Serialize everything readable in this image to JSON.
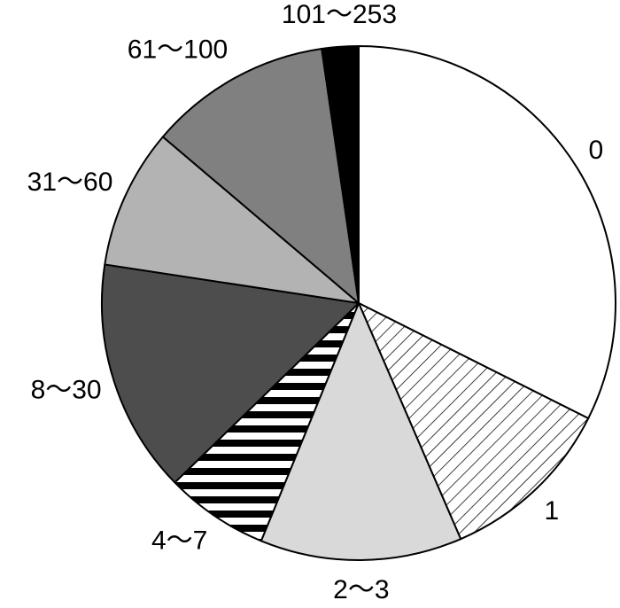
{
  "chart_data": {
    "type": "pie",
    "categories": [
      "0",
      "1",
      "2～3",
      "4～7",
      "8～30",
      "31～60",
      "61～100",
      "101～253"
    ],
    "values": [
      32.4,
      11.1,
      12.7,
      6.5,
      14.7,
      8.8,
      11.5,
      2.3
    ],
    "colors": [
      "#ffffff",
      "diagonal-hatch",
      "#d9d9d9",
      "horizontal-stripes",
      "#4d4d4d",
      "#b3b3b3",
      "#808080",
      "#000000"
    ]
  }
}
